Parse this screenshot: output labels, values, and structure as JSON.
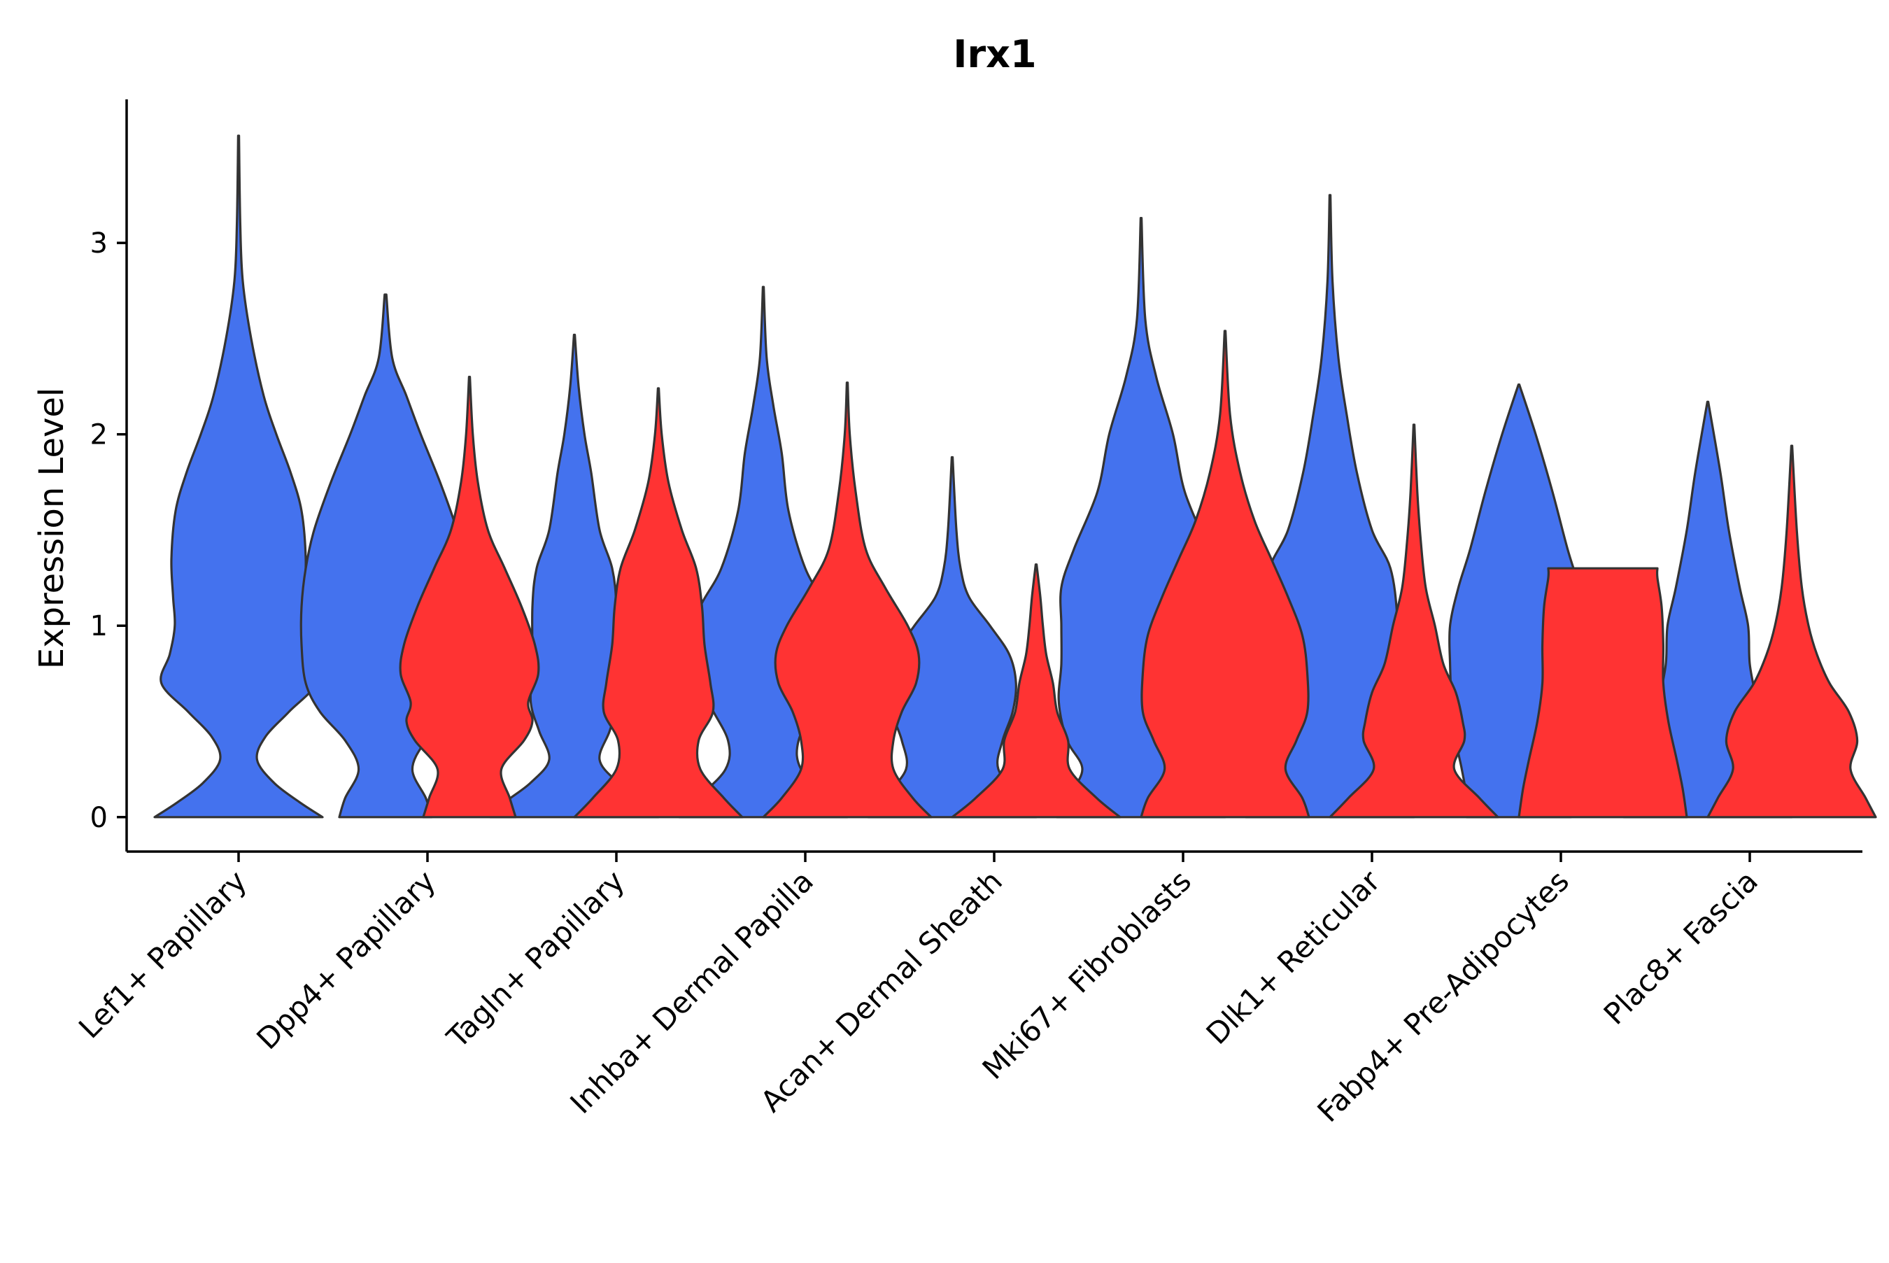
{
  "chart_data": {
    "type": "violin",
    "title": "Irx1",
    "xlabel": "",
    "ylabel": "Expression Level",
    "ylim": [
      -0.18,
      3.75
    ],
    "yticks": [
      0,
      1,
      2,
      3
    ],
    "grid": false,
    "legend": "none",
    "colors": {
      "group1": "#4472EE",
      "group2": "#FF3333"
    },
    "categories": [
      "Lef1+ Papillary",
      "Dpp4+ Papillary",
      "Tagln+ Papillary",
      "Inhba+ Dermal Papilla",
      "Acan+ Dermal Sheath",
      "Mki67+ Fibroblasts",
      "Dlk1+ Reticular",
      "Fabp4+ Pre-Adipocytes",
      "Plac8+ Fascia"
    ],
    "series": [
      {
        "name": "group1",
        "violins": [
          {
            "max": 3.56,
            "profile": [
              [
                0,
                1.0
              ],
              [
                0.08,
                0.72
              ],
              [
                0.18,
                0.42
              ],
              [
                0.3,
                0.22
              ],
              [
                0.42,
                0.32
              ],
              [
                0.55,
                0.6
              ],
              [
                0.7,
                0.92
              ],
              [
                0.85,
                0.82
              ],
              [
                1.0,
                0.76
              ],
              [
                1.15,
                0.78
              ],
              [
                1.35,
                0.8
              ],
              [
                1.6,
                0.75
              ],
              [
                1.8,
                0.62
              ],
              [
                2.0,
                0.45
              ],
              [
                2.2,
                0.3
              ],
              [
                2.5,
                0.15
              ],
              [
                2.8,
                0.05
              ],
              [
                3.1,
                0.02
              ],
              [
                3.56,
                0.005
              ]
            ]
          },
          {
            "max": 2.73,
            "profile": [
              [
                0,
                0.55
              ],
              [
                0.1,
                0.48
              ],
              [
                0.25,
                0.32
              ],
              [
                0.4,
                0.48
              ],
              [
                0.55,
                0.78
              ],
              [
                0.7,
                0.95
              ],
              [
                0.9,
                1.0
              ],
              [
                1.1,
                1.0
              ],
              [
                1.3,
                0.95
              ],
              [
                1.5,
                0.85
              ],
              [
                1.75,
                0.65
              ],
              [
                2.0,
                0.42
              ],
              [
                2.2,
                0.25
              ],
              [
                2.4,
                0.08
              ],
              [
                2.73,
                0.01
              ]
            ]
          },
          {
            "max": 2.52,
            "profile": [
              [
                0,
                1.0
              ],
              [
                0.08,
                0.82
              ],
              [
                0.18,
                0.52
              ],
              [
                0.3,
                0.3
              ],
              [
                0.45,
                0.42
              ],
              [
                0.6,
                0.52
              ],
              [
                0.8,
                0.5
              ],
              [
                1.1,
                0.5
              ],
              [
                1.3,
                0.45
              ],
              [
                1.5,
                0.3
              ],
              [
                1.8,
                0.2
              ],
              [
                2.0,
                0.12
              ],
              [
                2.25,
                0.05
              ],
              [
                2.52,
                0.005
              ]
            ]
          },
          {
            "max": 2.77,
            "profile": [
              [
                0,
                1.0
              ],
              [
                0.1,
                0.78
              ],
              [
                0.25,
                0.45
              ],
              [
                0.4,
                0.42
              ],
              [
                0.6,
                0.65
              ],
              [
                0.8,
                0.8
              ],
              [
                0.95,
                0.82
              ],
              [
                1.1,
                0.75
              ],
              [
                1.3,
                0.5
              ],
              [
                1.6,
                0.3
              ],
              [
                1.9,
                0.22
              ],
              [
                2.15,
                0.12
              ],
              [
                2.4,
                0.04
              ],
              [
                2.77,
                0.005
              ]
            ]
          },
          {
            "max": 1.88,
            "profile": [
              [
                0,
                1.0
              ],
              [
                0.1,
                0.82
              ],
              [
                0.25,
                0.55
              ],
              [
                0.4,
                0.6
              ],
              [
                0.55,
                0.72
              ],
              [
                0.7,
                0.76
              ],
              [
                0.85,
                0.68
              ],
              [
                1.0,
                0.45
              ],
              [
                1.15,
                0.2
              ],
              [
                1.3,
                0.1
              ],
              [
                1.5,
                0.05
              ],
              [
                1.88,
                0.005
              ]
            ]
          },
          {
            "max": 3.13,
            "profile": [
              [
                0,
                1.0
              ],
              [
                0.1,
                0.88
              ],
              [
                0.25,
                0.7
              ],
              [
                0.4,
                0.88
              ],
              [
                0.6,
                0.98
              ],
              [
                0.8,
                0.95
              ],
              [
                1.0,
                0.95
              ],
              [
                1.2,
                0.95
              ],
              [
                1.4,
                0.8
              ],
              [
                1.7,
                0.52
              ],
              [
                2.0,
                0.38
              ],
              [
                2.3,
                0.18
              ],
              [
                2.6,
                0.05
              ],
              [
                3.13,
                0.005
              ]
            ]
          },
          {
            "max": 3.25,
            "profile": [
              [
                0,
                1.0
              ],
              [
                0.1,
                0.88
              ],
              [
                0.25,
                0.7
              ],
              [
                0.4,
                0.8
              ],
              [
                0.55,
                0.82
              ],
              [
                0.8,
                0.8
              ],
              [
                1.05,
                0.8
              ],
              [
                1.3,
                0.72
              ],
              [
                1.5,
                0.5
              ],
              [
                1.8,
                0.32
              ],
              [
                2.1,
                0.2
              ],
              [
                2.4,
                0.1
              ],
              [
                2.8,
                0.03
              ],
              [
                3.25,
                0.005
              ]
            ]
          },
          {
            "max": 2.26,
            "profile": [
              [
                0,
                0.62
              ],
              [
                0.1,
                0.62
              ],
              [
                0.25,
                0.68
              ],
              [
                0.4,
                0.75
              ],
              [
                0.6,
                0.8
              ],
              [
                0.8,
                0.82
              ],
              [
                1.0,
                0.82
              ],
              [
                1.2,
                0.72
              ],
              [
                1.4,
                0.58
              ],
              [
                1.7,
                0.4
              ],
              [
                2.0,
                0.2
              ],
              [
                2.26,
                0.005
              ]
            ]
          },
          {
            "max": 2.17,
            "profile": [
              [
                0,
                1.0
              ],
              [
                0.1,
                0.9
              ],
              [
                0.25,
                0.62
              ],
              [
                0.4,
                0.62
              ],
              [
                0.6,
                0.58
              ],
              [
                0.8,
                0.5
              ],
              [
                1.0,
                0.48
              ],
              [
                1.2,
                0.38
              ],
              [
                1.5,
                0.25
              ],
              [
                1.8,
                0.15
              ],
              [
                2.17,
                0.005
              ]
            ]
          }
        ]
      },
      {
        "name": "group2",
        "violins": [
          null,
          {
            "max": 2.3,
            "profile": [
              [
                0,
                0.55
              ],
              [
                0.1,
                0.48
              ],
              [
                0.25,
                0.38
              ],
              [
                0.4,
                0.65
              ],
              [
                0.5,
                0.75
              ],
              [
                0.6,
                0.7
              ],
              [
                0.75,
                0.82
              ],
              [
                0.9,
                0.78
              ],
              [
                1.1,
                0.62
              ],
              [
                1.3,
                0.42
              ],
              [
                1.5,
                0.22
              ],
              [
                1.75,
                0.1
              ],
              [
                2.0,
                0.04
              ],
              [
                2.3,
                0.005
              ]
            ]
          },
          {
            "max": 2.24,
            "profile": [
              [
                0,
                1.0
              ],
              [
                0.1,
                0.78
              ],
              [
                0.25,
                0.5
              ],
              [
                0.4,
                0.48
              ],
              [
                0.55,
                0.65
              ],
              [
                0.7,
                0.62
              ],
              [
                0.9,
                0.55
              ],
              [
                1.1,
                0.52
              ],
              [
                1.3,
                0.45
              ],
              [
                1.5,
                0.28
              ],
              [
                1.75,
                0.12
              ],
              [
                2.0,
                0.04
              ],
              [
                2.24,
                0.005
              ]
            ]
          },
          {
            "max": 2.27,
            "profile": [
              [
                0,
                1.0
              ],
              [
                0.1,
                0.78
              ],
              [
                0.25,
                0.55
              ],
              [
                0.4,
                0.55
              ],
              [
                0.55,
                0.65
              ],
              [
                0.7,
                0.82
              ],
              [
                0.85,
                0.85
              ],
              [
                1.0,
                0.72
              ],
              [
                1.2,
                0.45
              ],
              [
                1.4,
                0.22
              ],
              [
                1.7,
                0.1
              ],
              [
                2.0,
                0.03
              ],
              [
                2.27,
                0.005
              ]
            ]
          },
          {
            "max": 1.32,
            "profile": [
              [
                0,
                1.0
              ],
              [
                0.1,
                0.72
              ],
              [
                0.25,
                0.4
              ],
              [
                0.4,
                0.38
              ],
              [
                0.55,
                0.25
              ],
              [
                0.7,
                0.2
              ],
              [
                0.85,
                0.12
              ],
              [
                1.0,
                0.08
              ],
              [
                1.15,
                0.05
              ],
              [
                1.32,
                0.005
              ]
            ]
          },
          {
            "max": 2.54,
            "profile": [
              [
                0,
                1.0
              ],
              [
                0.1,
                0.92
              ],
              [
                0.25,
                0.72
              ],
              [
                0.4,
                0.85
              ],
              [
                0.55,
                0.98
              ],
              [
                0.75,
                0.98
              ],
              [
                0.95,
                0.92
              ],
              [
                1.15,
                0.75
              ],
              [
                1.35,
                0.55
              ],
              [
                1.55,
                0.35
              ],
              [
                1.8,
                0.18
              ],
              [
                2.1,
                0.06
              ],
              [
                2.54,
                0.005
              ]
            ]
          },
          {
            "max": 2.05,
            "profile": [
              [
                0,
                1.0
              ],
              [
                0.1,
                0.78
              ],
              [
                0.25,
                0.48
              ],
              [
                0.4,
                0.6
              ],
              [
                0.5,
                0.58
              ],
              [
                0.65,
                0.5
              ],
              [
                0.8,
                0.35
              ],
              [
                1.0,
                0.25
              ],
              [
                1.2,
                0.14
              ],
              [
                1.45,
                0.08
              ],
              [
                1.7,
                0.04
              ],
              [
                2.05,
                0.005
              ]
            ]
          },
          {
            "max": 1.3,
            "profile": [
              [
                0,
                1.0
              ],
              [
                0.15,
                0.95
              ],
              [
                0.3,
                0.88
              ],
              [
                0.5,
                0.78
              ],
              [
                0.7,
                0.72
              ],
              [
                0.9,
                0.72
              ],
              [
                1.1,
                0.7
              ],
              [
                1.25,
                0.65
              ],
              [
                1.3,
                0.65
              ]
            ],
            "flatTop": true
          },
          {
            "max": 1.94,
            "profile": [
              [
                0,
                1.0
              ],
              [
                0.1,
                0.88
              ],
              [
                0.25,
                0.7
              ],
              [
                0.4,
                0.78
              ],
              [
                0.55,
                0.68
              ],
              [
                0.7,
                0.45
              ],
              [
                0.85,
                0.3
              ],
              [
                1.0,
                0.2
              ],
              [
                1.2,
                0.12
              ],
              [
                1.5,
                0.06
              ],
              [
                1.94,
                0.005
              ]
            ]
          }
        ]
      }
    ]
  }
}
